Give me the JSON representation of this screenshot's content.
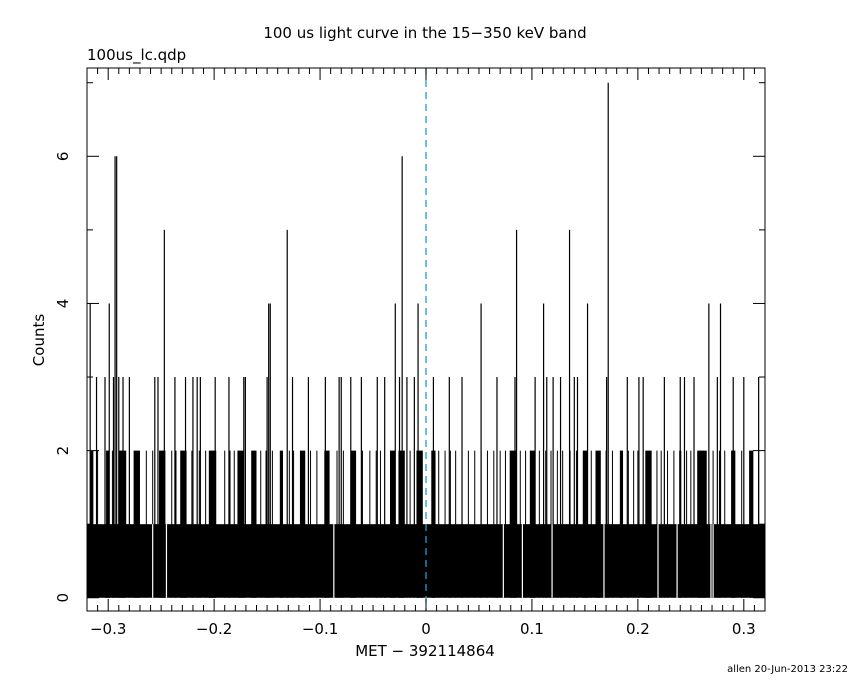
{
  "chart_data": {
    "type": "bar",
    "title": "100 us light curve in the 15−350 keV band",
    "subtitle": "100us_lc.qdp",
    "xlabel": "MET − 392114864",
    "ylabel": "Counts",
    "footer": "allen 20-Jun-2013 23:22",
    "xlim": [
      -0.32,
      0.32
    ],
    "ylim": [
      -0.18,
      7.2
    ],
    "bin_width": 0.0001,
    "x_ticks": [
      {
        "value": -0.3,
        "label": "−0.3"
      },
      {
        "value": -0.2,
        "label": "−0.2"
      },
      {
        "value": -0.1,
        "label": "−0.1"
      },
      {
        "value": 0,
        "label": "0"
      },
      {
        "value": 0.1,
        "label": "0.1"
      },
      {
        "value": 0.2,
        "label": "0.2"
      },
      {
        "value": 0.3,
        "label": "0.3"
      }
    ],
    "y_ticks": [
      {
        "value": 0,
        "label": "0"
      },
      {
        "value": 2,
        "label": "2"
      },
      {
        "value": 4,
        "label": "4"
      },
      {
        "value": 6,
        "label": "6"
      }
    ],
    "trigger_line": {
      "x": 0,
      "color": "#1e9bd6",
      "style": "dashed"
    },
    "baseline_count": 1,
    "zero_bins": [
      -0.258,
      -0.245,
      -0.087,
      0.073,
      0.091,
      0.119,
      0.168,
      0.219,
      0.237,
      0.269,
      0.271
    ],
    "count2_ranges": [
      [
        -0.317,
        -0.314
      ],
      [
        -0.302,
        -0.299
      ],
      [
        -0.29,
        -0.283
      ],
      [
        -0.276,
        -0.27
      ],
      [
        -0.252,
        -0.246
      ],
      [
        -0.232,
        -0.226
      ],
      [
        -0.205,
        -0.198
      ],
      [
        -0.178,
        -0.172
      ],
      [
        -0.165,
        -0.16
      ],
      [
        -0.138,
        -0.135
      ],
      [
        -0.119,
        -0.114
      ],
      [
        -0.096,
        -0.091
      ],
      [
        -0.071,
        -0.066
      ],
      [
        -0.034,
        -0.029
      ],
      [
        -0.026,
        -0.02
      ],
      [
        -0.009,
        -0.003
      ],
      [
        0.005,
        0.009
      ],
      [
        0.079,
        0.085
      ],
      [
        0.098,
        0.103
      ],
      [
        0.148,
        0.152
      ],
      [
        0.16,
        0.165
      ],
      [
        0.183,
        0.186
      ],
      [
        0.207,
        0.213
      ],
      [
        0.239,
        0.241
      ],
      [
        0.256,
        0.265
      ],
      [
        0.288,
        0.292
      ],
      [
        0.305,
        0.309
      ]
    ],
    "count2_points": [
      -0.31,
      -0.296,
      -0.264,
      -0.258,
      -0.24,
      -0.236,
      -0.221,
      -0.214,
      -0.208,
      -0.19,
      -0.185,
      -0.181,
      -0.156,
      -0.151,
      -0.145,
      -0.129,
      -0.125,
      -0.109,
      -0.103,
      -0.084,
      -0.078,
      -0.06,
      -0.053,
      -0.047,
      -0.043,
      -0.015,
      0.012,
      0.018,
      0.023,
      0.028,
      0.034,
      0.04,
      0.046,
      0.052,
      0.058,
      0.064,
      0.07,
      0.075,
      0.089,
      0.094,
      0.107,
      0.113,
      0.118,
      0.124,
      0.129,
      0.136,
      0.142,
      0.156,
      0.17,
      0.176,
      0.191,
      0.196,
      0.2,
      0.218,
      0.222,
      0.228,
      0.234,
      0.246,
      0.25,
      0.271,
      0.277,
      0.282,
      0.298,
      0.314
    ],
    "spikes": [
      {
        "x": -0.317,
        "y": 4
      },
      {
        "x": -0.311,
        "y": 3
      },
      {
        "x": -0.303,
        "y": 3
      },
      {
        "x": -0.299,
        "y": 4
      },
      {
        "x": -0.295,
        "y": 3
      },
      {
        "x": -0.2935,
        "y": 6
      },
      {
        "x": -0.292,
        "y": 6
      },
      {
        "x": -0.29,
        "y": 3
      },
      {
        "x": -0.286,
        "y": 3
      },
      {
        "x": -0.28,
        "y": 3
      },
      {
        "x": -0.256,
        "y": 3
      },
      {
        "x": -0.253,
        "y": 3
      },
      {
        "x": -0.247,
        "y": 5
      },
      {
        "x": -0.237,
        "y": 3
      },
      {
        "x": -0.227,
        "y": 3
      },
      {
        "x": -0.22,
        "y": 3
      },
      {
        "x": -0.216,
        "y": 3
      },
      {
        "x": -0.213,
        "y": 3
      },
      {
        "x": -0.199,
        "y": 3
      },
      {
        "x": -0.186,
        "y": 3
      },
      {
        "x": -0.172,
        "y": 3
      },
      {
        "x": -0.1705,
        "y": 3
      },
      {
        "x": -0.15,
        "y": 3
      },
      {
        "x": -0.1485,
        "y": 4
      },
      {
        "x": -0.147,
        "y": 4
      },
      {
        "x": -0.131,
        "y": 5
      },
      {
        "x": -0.126,
        "y": 3
      },
      {
        "x": -0.111,
        "y": 3
      },
      {
        "x": -0.095,
        "y": 3
      },
      {
        "x": -0.082,
        "y": 3
      },
      {
        "x": -0.08,
        "y": 3
      },
      {
        "x": -0.071,
        "y": 3
      },
      {
        "x": -0.061,
        "y": 3
      },
      {
        "x": -0.046,
        "y": 3
      },
      {
        "x": -0.039,
        "y": 3
      },
      {
        "x": -0.029,
        "y": 4
      },
      {
        "x": -0.025,
        "y": 3
      },
      {
        "x": -0.0225,
        "y": 6
      },
      {
        "x": -0.018,
        "y": 3
      },
      {
        "x": -0.011,
        "y": 3
      },
      {
        "x": -0.0075,
        "y": 4
      },
      {
        "x": 0.007,
        "y": 3
      },
      {
        "x": 0.022,
        "y": 3
      },
      {
        "x": 0.034,
        "y": 3
      },
      {
        "x": 0.052,
        "y": 4
      },
      {
        "x": 0.067,
        "y": 3
      },
      {
        "x": 0.084,
        "y": 3
      },
      {
        "x": 0.0855,
        "y": 5
      },
      {
        "x": 0.103,
        "y": 3
      },
      {
        "x": 0.111,
        "y": 4
      },
      {
        "x": 0.114,
        "y": 3
      },
      {
        "x": 0.12,
        "y": 3
      },
      {
        "x": 0.127,
        "y": 3
      },
      {
        "x": 0.1355,
        "y": 5
      },
      {
        "x": 0.14,
        "y": 3
      },
      {
        "x": 0.143,
        "y": 3
      },
      {
        "x": 0.1525,
        "y": 4
      },
      {
        "x": 0.1705,
        "y": 3
      },
      {
        "x": 0.172,
        "y": 7
      },
      {
        "x": 0.19,
        "y": 3
      },
      {
        "x": 0.201,
        "y": 3
      },
      {
        "x": 0.205,
        "y": 3
      },
      {
        "x": 0.225,
        "y": 3
      },
      {
        "x": 0.24,
        "y": 3
      },
      {
        "x": 0.244,
        "y": 3
      },
      {
        "x": 0.253,
        "y": 3
      },
      {
        "x": 0.267,
        "y": 4
      },
      {
        "x": 0.275,
        "y": 3
      },
      {
        "x": 0.278,
        "y": 4
      },
      {
        "x": 0.29,
        "y": 3
      },
      {
        "x": 0.3,
        "y": 3
      },
      {
        "x": 0.314,
        "y": 3
      }
    ]
  }
}
